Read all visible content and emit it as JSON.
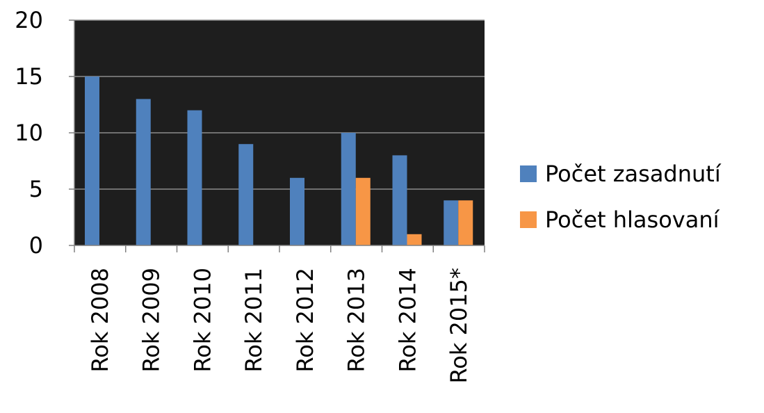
{
  "chart_data": {
    "type": "bar",
    "categories": [
      "Rok 2008",
      "Rok 2009",
      "Rok 2010",
      "Rok 2011",
      "Rok 2012",
      "Rok 2013",
      "Rok 2014",
      "Rok 2015*"
    ],
    "series": [
      {
        "name": "Počet zasadnutí",
        "values": [
          15,
          13,
          12,
          9,
          6,
          10,
          8,
          4
        ],
        "color": "#4f81bd"
      },
      {
        "name": "Počet hlasovaní",
        "values": [
          0,
          0,
          0,
          0,
          0,
          6,
          1,
          4
        ],
        "color": "#f79646"
      }
    ],
    "ylim": [
      0,
      20
    ],
    "yticks": [
      "0",
      "5",
      "10",
      "15",
      "20"
    ],
    "grid": true,
    "legend_position": "right",
    "plot_background": "#1e1e1e",
    "gridline_color": "#8c8c8c"
  }
}
